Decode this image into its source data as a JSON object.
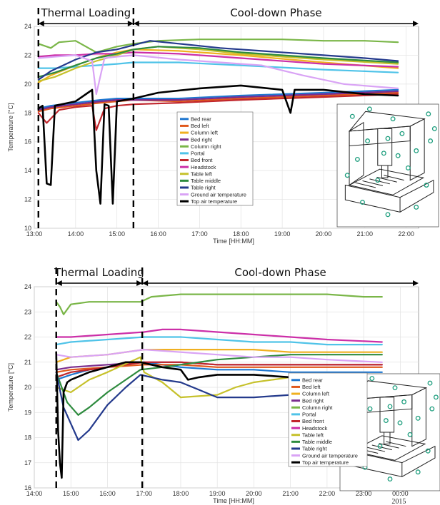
{
  "chart_data": [
    {
      "type": "line",
      "phases": {
        "left": "Thermal Loading",
        "right": "Cool-down Phase"
      },
      "xlabel": "Time [HH:MM]",
      "ylabel": "Temperature [°C]",
      "xlim": [
        13.0,
        22.3
      ],
      "ylim": [
        10,
        24
      ],
      "xticks": [
        "13:00",
        "14:00",
        "15:00",
        "16:00",
        "17:00",
        "18:00",
        "19:00",
        "20:00",
        "21:00",
        "22:00"
      ],
      "yticks": [
        "10",
        "12",
        "14",
        "16",
        "18",
        "20",
        "22",
        "24"
      ],
      "phase_boundaries": [
        13.1,
        15.4
      ],
      "grid": true,
      "legend_position": "center",
      "series": [
        {
          "name": "Bed rear",
          "color": "#1f77d0",
          "x": [
            13.1,
            13.4,
            14.0,
            14.6,
            15.0,
            15.4,
            16.5,
            18.0,
            20.0,
            21.8
          ],
          "y": [
            18.3,
            18.5,
            18.7,
            18.9,
            19.0,
            19.0,
            19.0,
            19.2,
            19.4,
            19.6
          ]
        },
        {
          "name": "Bed left",
          "color": "#e0581c",
          "x": [
            13.1,
            13.4,
            14.0,
            14.6,
            15.0,
            15.4,
            16.5,
            18.0,
            20.0,
            21.8
          ],
          "y": [
            18.1,
            18.3,
            18.5,
            18.7,
            18.8,
            18.9,
            18.8,
            19.0,
            19.2,
            19.4
          ]
        },
        {
          "name": "Column left",
          "color": "#f0b020",
          "x": [
            13.1,
            13.4,
            14.0,
            14.6,
            15.0,
            15.4,
            16.5,
            18.0,
            20.0,
            21.8
          ],
          "y": [
            20.1,
            20.6,
            21.3,
            21.9,
            22.2,
            22.4,
            22.3,
            22.0,
            21.5,
            21.1
          ]
        },
        {
          "name": "Bed right",
          "color": "#7b2d8e",
          "x": [
            13.1,
            13.4,
            14.0,
            14.6,
            15.0,
            15.4,
            16.5,
            18.0,
            20.0,
            21.8
          ],
          "y": [
            18.2,
            18.4,
            18.6,
            18.8,
            18.9,
            18.9,
            18.9,
            19.1,
            19.3,
            19.5
          ]
        },
        {
          "name": "Column right",
          "color": "#7ab648",
          "x": [
            13.1,
            13.4,
            13.6,
            14.0,
            14.5,
            15.0,
            15.4,
            16.0,
            17.0,
            18.0,
            19.0,
            20.0,
            21.0,
            21.8
          ],
          "y": [
            22.8,
            22.5,
            22.9,
            23.0,
            22.2,
            22.6,
            22.8,
            23.0,
            23.1,
            23.1,
            23.1,
            23.0,
            23.0,
            22.9
          ]
        },
        {
          "name": "Portal",
          "color": "#4fc3e8",
          "x": [
            13.1,
            13.5,
            14.0,
            14.5,
            15.0,
            15.4,
            16.5,
            18.0,
            20.0,
            21.8
          ],
          "y": [
            21.1,
            21.1,
            21.2,
            21.3,
            21.4,
            21.5,
            21.5,
            21.3,
            21.0,
            20.8
          ]
        },
        {
          "name": "Bed front",
          "color": "#c1272d",
          "x": [
            13.1,
            13.3,
            13.6,
            14.0,
            14.4,
            14.5,
            14.7,
            15.0,
            15.4,
            16.5,
            18.0,
            20.0,
            21.8
          ],
          "y": [
            18.0,
            17.3,
            18.2,
            18.4,
            18.5,
            16.8,
            18.3,
            18.5,
            18.6,
            18.7,
            18.9,
            19.1,
            19.3
          ]
        },
        {
          "name": "Headstock",
          "color": "#cc2fa8",
          "x": [
            13.1,
            13.5,
            14.0,
            14.5,
            15.0,
            15.4,
            16.5,
            18.0,
            20.0,
            21.8
          ],
          "y": [
            21.9,
            22.0,
            22.0,
            22.1,
            22.1,
            22.2,
            22.1,
            21.8,
            21.4,
            21.2
          ]
        },
        {
          "name": "Table left",
          "color": "#c6c12b",
          "x": [
            13.1,
            13.5,
            14.0,
            14.5,
            15.0,
            15.4,
            16.0,
            17.0,
            18.0,
            20.0,
            21.8
          ],
          "y": [
            20.2,
            20.5,
            21.1,
            21.6,
            22.0,
            22.4,
            22.6,
            22.4,
            22.1,
            21.7,
            21.4
          ]
        },
        {
          "name": "Table middle",
          "color": "#2e8b3e",
          "x": [
            13.1,
            13.5,
            14.0,
            14.5,
            15.0,
            15.4,
            16.0,
            17.0,
            18.0,
            20.0,
            21.8
          ],
          "y": [
            20.5,
            20.8,
            21.3,
            21.8,
            22.1,
            22.4,
            22.6,
            22.5,
            22.2,
            21.8,
            21.5
          ]
        },
        {
          "name": "Table right",
          "color": "#243a8c",
          "x": [
            13.1,
            13.4,
            14.0,
            14.5,
            15.0,
            15.4,
            15.8,
            16.5,
            17.5,
            18.5,
            20.0,
            21.0,
            21.8
          ],
          "y": [
            20.3,
            20.9,
            21.7,
            22.2,
            22.4,
            22.7,
            23.0,
            22.8,
            22.5,
            22.3,
            22.0,
            21.8,
            21.6
          ]
        },
        {
          "name": "Ground air temperature",
          "color": "#d9a3f5",
          "x": [
            13.1,
            13.5,
            14.0,
            14.4,
            14.5,
            14.7,
            15.0,
            15.4,
            16.5,
            17.5,
            18.5,
            19.5,
            20.5,
            21.8
          ],
          "y": [
            21.8,
            21.9,
            22.0,
            21.6,
            19.3,
            21.8,
            21.9,
            22.0,
            21.7,
            21.5,
            21.3,
            20.6,
            20.0,
            19.7
          ]
        },
        {
          "name": "Top air temperature",
          "color": "#000000",
          "x": [
            13.1,
            13.2,
            13.3,
            13.4,
            13.5,
            14.0,
            14.3,
            14.4,
            14.5,
            14.6,
            14.7,
            14.8,
            14.9,
            15.0,
            15.4,
            16.0,
            17.0,
            18.0,
            19.0,
            19.2,
            19.3,
            20.0,
            21.0,
            21.8
          ],
          "y": [
            18.3,
            18.5,
            13.1,
            13.0,
            18.5,
            18.8,
            19.4,
            19.6,
            14.0,
            11.7,
            18.6,
            18.5,
            11.7,
            18.8,
            19.0,
            19.4,
            19.7,
            19.9,
            19.6,
            18.0,
            19.6,
            19.6,
            19.3,
            19.2
          ]
        }
      ],
      "legend": [
        "Bed rear",
        "Bed left",
        "Column left",
        "Bed right",
        "Column right",
        "Portal",
        "Bed front",
        "Headstock",
        "Table left",
        "Table middle",
        "Table right",
        "Ground air temperature",
        "Top air temperature"
      ]
    },
    {
      "type": "line",
      "phases": {
        "left": "Thermal Loading",
        "right": "Cool-down Phase"
      },
      "xlabel": "Time [HH:MM]",
      "ylabel": "Temperature [°C]",
      "xlim": [
        14.0,
        24.5
      ],
      "ylim": [
        16,
        24
      ],
      "xticks": [
        "14:00",
        "15:00",
        "16:00",
        "17:00",
        "18:00",
        "19:00",
        "20:00",
        "21:00",
        "22:00",
        "23:00",
        "00:00"
      ],
      "yticks": [
        "16",
        "17",
        "18",
        "19",
        "20",
        "21",
        "22",
        "23",
        "24"
      ],
      "year_label": "2015",
      "phase_boundaries": [
        14.6,
        16.95
      ],
      "grid": true,
      "legend_position": "center-right",
      "series": [
        {
          "name": "Bed rear",
          "color": "#1f77d0",
          "x": [
            14.6,
            15.0,
            15.5,
            16.0,
            16.5,
            17.0,
            18.0,
            19.0,
            20.0,
            21.0,
            22.0,
            23.5
          ],
          "y": [
            20.3,
            20.5,
            20.7,
            20.8,
            21.0,
            21.0,
            20.8,
            20.7,
            20.7,
            20.6,
            20.6,
            20.6
          ]
        },
        {
          "name": "Bed left",
          "color": "#e0581c",
          "x": [
            14.6,
            15.0,
            16.0,
            17.0,
            18.0,
            19.0,
            20.0,
            21.0,
            22.0,
            23.5
          ],
          "y": [
            20.6,
            20.7,
            20.8,
            20.9,
            20.9,
            20.8,
            20.8,
            20.8,
            20.8,
            20.8
          ]
        },
        {
          "name": "Column left",
          "color": "#f0b020",
          "x": [
            14.6,
            15.0,
            16.0,
            17.0,
            18.0,
            19.0,
            20.0,
            21.0,
            22.0,
            23.5
          ],
          "y": [
            21.0,
            21.2,
            21.3,
            21.5,
            21.5,
            21.5,
            21.5,
            21.4,
            21.4,
            21.4
          ]
        },
        {
          "name": "Bed right",
          "color": "#7b2d8e",
          "x": [
            14.6,
            15.0,
            16.0,
            17.0,
            18.0,
            19.0,
            20.0,
            21.0,
            22.0,
            23.5
          ],
          "y": [
            20.7,
            20.8,
            20.9,
            21.0,
            21.0,
            20.9,
            20.9,
            20.9,
            20.9,
            20.9
          ]
        },
        {
          "name": "Column right",
          "color": "#7ab648",
          "x": [
            14.6,
            14.7,
            14.8,
            15.0,
            15.5,
            16.0,
            16.5,
            16.9,
            17.2,
            18.0,
            19.0,
            20.0,
            21.0,
            22.0,
            23.0,
            23.5
          ],
          "y": [
            23.4,
            23.2,
            22.9,
            23.3,
            23.4,
            23.4,
            23.4,
            23.4,
            23.6,
            23.7,
            23.7,
            23.7,
            23.7,
            23.7,
            23.6,
            23.6
          ]
        },
        {
          "name": "Portal",
          "color": "#4fc3e8",
          "x": [
            14.6,
            15.0,
            16.0,
            17.0,
            18.0,
            19.0,
            20.0,
            21.0,
            22.0,
            23.5
          ],
          "y": [
            21.7,
            21.8,
            21.9,
            22.0,
            22.0,
            21.9,
            21.8,
            21.8,
            21.7,
            21.7
          ]
        },
        {
          "name": "Bed front",
          "color": "#c1272d",
          "x": [
            14.6,
            15.0,
            16.0,
            17.0,
            18.0,
            19.0,
            20.0,
            21.0,
            22.0,
            23.5
          ],
          "y": [
            20.4,
            20.6,
            20.8,
            21.0,
            21.0,
            20.9,
            20.9,
            20.9,
            20.9,
            20.9
          ]
        },
        {
          "name": "Headstock",
          "color": "#cc2fa8",
          "x": [
            14.6,
            15.0,
            16.0,
            17.0,
            17.5,
            18.0,
            19.0,
            20.0,
            21.0,
            22.0,
            23.5
          ],
          "y": [
            22.0,
            22.0,
            22.1,
            22.2,
            22.3,
            22.3,
            22.2,
            22.1,
            22.0,
            21.9,
            21.8
          ]
        },
        {
          "name": "Table left",
          "color": "#c6c12b",
          "x": [
            14.6,
            15.0,
            15.5,
            16.0,
            16.9,
            17.0,
            17.5,
            18.0,
            19.0,
            19.5,
            20.0,
            21.0,
            22.0,
            23.5
          ],
          "y": [
            20.0,
            19.8,
            20.3,
            20.6,
            21.2,
            20.6,
            20.2,
            19.6,
            19.7,
            20.0,
            20.2,
            20.4,
            20.5,
            20.5
          ]
        },
        {
          "name": "Table middle",
          "color": "#2e8b3e",
          "x": [
            14.6,
            14.9,
            15.2,
            15.5,
            16.0,
            16.5,
            16.9,
            17.5,
            18.0,
            19.0,
            20.0,
            21.0,
            22.0,
            23.5
          ],
          "y": [
            20.6,
            19.4,
            18.9,
            19.2,
            19.8,
            20.3,
            20.7,
            20.8,
            20.9,
            21.1,
            21.2,
            21.3,
            21.3,
            21.3
          ]
        },
        {
          "name": "Table right",
          "color": "#243a8c",
          "x": [
            14.6,
            14.8,
            15.2,
            15.5,
            16.0,
            16.5,
            16.9,
            17.5,
            18.0,
            18.5,
            19.0,
            20.0,
            21.0,
            22.0,
            23.5
          ],
          "y": [
            20.6,
            19.2,
            17.9,
            18.3,
            19.3,
            20.0,
            20.5,
            20.3,
            20.2,
            19.9,
            19.6,
            19.6,
            19.7,
            19.8,
            19.8
          ]
        },
        {
          "name": "Ground air temperature",
          "color": "#d9a3f5",
          "x": [
            14.6,
            15.0,
            16.0,
            17.0,
            18.0,
            19.0,
            20.0,
            21.0,
            22.0,
            23.5
          ],
          "y": [
            21.3,
            21.2,
            21.3,
            21.5,
            21.4,
            21.3,
            21.2,
            21.2,
            21.1,
            21.0
          ]
        },
        {
          "name": "Top air temperature",
          "color": "#000000",
          "x": [
            14.6,
            14.65,
            14.7,
            14.75,
            14.8,
            14.9,
            15.0,
            15.5,
            16.0,
            16.5,
            16.9,
            17.5,
            18.0,
            18.2,
            18.5,
            19.0,
            20.0,
            21.0,
            22.0,
            23.0,
            23.5
          ],
          "y": [
            21.4,
            18.3,
            17.0,
            16.4,
            19.8,
            20.2,
            20.3,
            20.6,
            20.8,
            21.0,
            21.0,
            20.8,
            20.7,
            20.3,
            20.4,
            20.5,
            20.5,
            20.4,
            20.4,
            20.4,
            20.4
          ]
        }
      ],
      "legend": [
        "Bed rear",
        "Bed left",
        "Column left",
        "Bed right",
        "Column right",
        "Portal",
        "Bed front",
        "Headstock",
        "Table left",
        "Table middle",
        "Table right",
        "Ground air temperature",
        "Top air temperature"
      ]
    }
  ]
}
